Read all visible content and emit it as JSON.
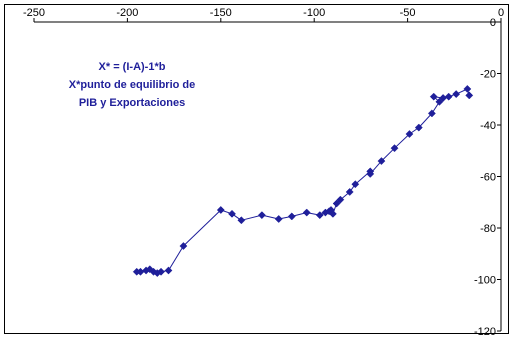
{
  "chart_data": {
    "type": "scatter",
    "title": "",
    "xlabel": "",
    "ylabel": "",
    "xlim": [
      -250,
      0
    ],
    "ylim": [
      -120,
      0
    ],
    "x_ticks": [
      -250,
      -200,
      -150,
      -100,
      -50,
      0
    ],
    "y_ticks": [
      0,
      -20,
      -40,
      -60,
      -80,
      -100,
      -120
    ],
    "x_tick_labels": [
      "-250",
      "-200",
      "-150",
      "-100",
      "-50",
      "0"
    ],
    "y_tick_labels": [
      "0",
      "-20",
      "-40",
      "-60",
      "-80",
      "-100",
      "-120"
    ],
    "grid": false,
    "annotation_lines": [
      "X* = (I-A)-1*b",
      "X*punto de equilibrio de",
      "PIB y Exportaciones"
    ],
    "series_color": "#1f1f9a",
    "marker": "diamond",
    "connected": true,
    "series": [
      {
        "points": [
          [
            -195,
            -97
          ],
          [
            -193,
            -97
          ],
          [
            -190,
            -96.5
          ],
          [
            -188,
            -96
          ],
          [
            -186,
            -97
          ],
          [
            -184,
            -97.5
          ],
          [
            -182,
            -97
          ],
          [
            -178,
            -96.5
          ],
          [
            -170,
            -87
          ],
          [
            -150,
            -73
          ],
          [
            -144,
            -74.5
          ],
          [
            -139,
            -77
          ],
          [
            -128,
            -75
          ],
          [
            -119,
            -76.5
          ],
          [
            -112,
            -75.5
          ],
          [
            -104,
            -74
          ],
          [
            -97,
            -75
          ],
          [
            -94,
            -74
          ],
          [
            -92,
            -73.5
          ],
          [
            -91,
            -73
          ],
          [
            -90,
            -74.5
          ],
          [
            -88,
            -70.5
          ],
          [
            -86,
            -69
          ],
          [
            -81,
            -66
          ],
          [
            -78,
            -63
          ],
          [
            -70,
            -58
          ],
          [
            -70,
            -59
          ],
          [
            -64,
            -54
          ],
          [
            -57,
            -49
          ],
          [
            -49,
            -43.5
          ],
          [
            -44,
            -41
          ],
          [
            -37,
            -35.5
          ],
          [
            -33,
            -31
          ],
          [
            -36,
            -29
          ],
          [
            -31,
            -29.5
          ],
          [
            -28,
            -29
          ],
          [
            -24,
            -28
          ],
          [
            -18,
            -26
          ],
          [
            -17,
            -28.5
          ]
        ]
      }
    ]
  }
}
